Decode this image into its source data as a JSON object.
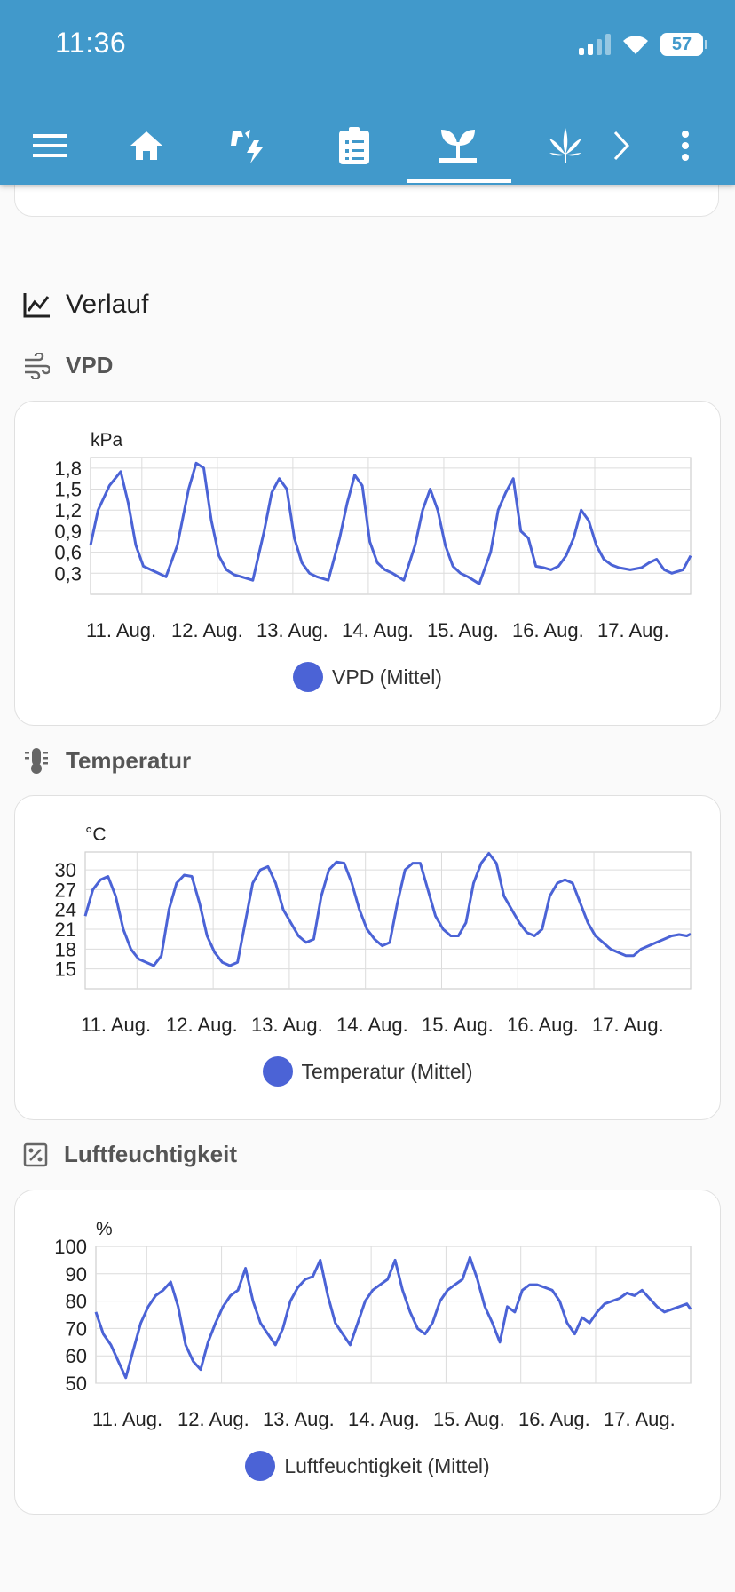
{
  "status": {
    "time": "11:36",
    "battery": "57"
  },
  "nav": {
    "icons": [
      "menu-icon",
      "home-icon",
      "weather-lightning-icon",
      "clipboard-list-icon",
      "sprout-icon",
      "cannabis-icon",
      "chevron-right-icon",
      "more-vert-icon"
    ],
    "active": "sprout-icon",
    "color": "#4199cb"
  },
  "section": {
    "title": "Verlauf"
  },
  "charts": [
    {
      "title": "VPD",
      "icon": "wind-icon",
      "legend": "VPD (Mittel)",
      "chart_data": {
        "type": "line",
        "unit": "kPa",
        "color": "#4b63d6",
        "x_labels": [
          "11. Aug.",
          "12. Aug.",
          "13. Aug.",
          "14. Aug.",
          "15. Aug.",
          "16. Aug.",
          "17. Aug."
        ],
        "y_ticks": [
          "1,8",
          "1,5",
          "1,2",
          "0,9",
          "0,6",
          "0,3"
        ],
        "ylim": [
          0,
          1.95
        ],
        "x": [
          10.0,
          10.1,
          10.25,
          10.4,
          10.5,
          10.6,
          10.7,
          10.8,
          10.9,
          11.0,
          11.15,
          11.3,
          11.4,
          11.5,
          11.6,
          11.7,
          11.8,
          11.9,
          12.0,
          12.15,
          12.3,
          12.4,
          12.5,
          12.6,
          12.7,
          12.8,
          12.9,
          13.0,
          13.15,
          13.3,
          13.4,
          13.5,
          13.6,
          13.7,
          13.8,
          13.9,
          14.0,
          14.15,
          14.3,
          14.4,
          14.5,
          14.6,
          14.7,
          14.8,
          14.9,
          15.0,
          15.15,
          15.3,
          15.4,
          15.5,
          15.6,
          15.7,
          15.8,
          15.9,
          16.0,
          16.1,
          16.2,
          16.3,
          16.4,
          16.5,
          16.6,
          16.7,
          16.8,
          16.9,
          17.0,
          17.15,
          17.3,
          17.4,
          17.5,
          17.6,
          17.7,
          17.85,
          17.95
        ],
        "values": [
          0.7,
          1.2,
          1.55,
          1.75,
          1.3,
          0.7,
          0.4,
          0.35,
          0.3,
          0.25,
          0.7,
          1.5,
          1.87,
          1.8,
          1.05,
          0.55,
          0.35,
          0.28,
          0.25,
          0.2,
          0.9,
          1.45,
          1.65,
          1.5,
          0.8,
          0.45,
          0.3,
          0.25,
          0.2,
          0.8,
          1.3,
          1.7,
          1.55,
          0.75,
          0.45,
          0.35,
          0.3,
          0.2,
          0.7,
          1.2,
          1.5,
          1.2,
          0.7,
          0.4,
          0.3,
          0.25,
          0.15,
          0.6,
          1.2,
          1.45,
          1.65,
          0.9,
          0.8,
          0.4,
          0.38,
          0.35,
          0.4,
          0.55,
          0.8,
          1.2,
          1.05,
          0.7,
          0.5,
          0.42,
          0.38,
          0.35,
          0.38,
          0.45,
          0.5,
          0.35,
          0.3,
          0.35,
          0.55
        ]
      }
    },
    {
      "title": "Temperatur",
      "icon": "thermometer-icon",
      "legend": "Temperatur (Mittel)",
      "chart_data": {
        "type": "line",
        "unit": "°C",
        "color": "#4b63d6",
        "x_labels": [
          "11. Aug.",
          "12. Aug.",
          "13. Aug.",
          "14. Aug.",
          "15. Aug.",
          "16. Aug.",
          "17. Aug."
        ],
        "y_ticks": [
          "30",
          "27",
          "24",
          "21",
          "18",
          "15"
        ],
        "ylim": [
          12,
          32.7
        ],
        "x": [
          10.0,
          10.1,
          10.2,
          10.3,
          10.4,
          10.5,
          10.6,
          10.7,
          10.8,
          10.9,
          11.0,
          11.1,
          11.2,
          11.3,
          11.4,
          11.5,
          11.6,
          11.7,
          11.8,
          11.9,
          12.0,
          12.1,
          12.2,
          12.3,
          12.4,
          12.5,
          12.6,
          12.7,
          12.8,
          12.9,
          13.0,
          13.1,
          13.2,
          13.3,
          13.4,
          13.5,
          13.6,
          13.7,
          13.8,
          13.9,
          14.0,
          14.1,
          14.2,
          14.3,
          14.4,
          14.5,
          14.6,
          14.7,
          14.8,
          14.9,
          15.0,
          15.1,
          15.2,
          15.3,
          15.4,
          15.5,
          15.6,
          15.7,
          15.8,
          15.9,
          16.0,
          16.1,
          16.2,
          16.3,
          16.4,
          16.5,
          16.6,
          16.7,
          16.8,
          16.9,
          17.0,
          17.1,
          17.2,
          17.3,
          17.4,
          17.5,
          17.6,
          17.7,
          17.8,
          17.9,
          17.95
        ],
        "values": [
          23,
          27,
          28.5,
          29,
          26,
          21,
          18,
          16.5,
          16,
          15.5,
          17,
          24,
          28,
          29.2,
          29,
          25,
          20,
          17.5,
          16,
          15.5,
          16,
          22,
          28,
          30,
          30.5,
          28,
          24,
          22,
          20,
          19,
          19.5,
          26,
          30,
          31.2,
          31,
          28,
          24,
          21,
          19.5,
          18.5,
          19,
          25,
          30,
          31,
          31,
          27,
          23,
          21,
          20,
          20,
          22,
          28,
          31,
          32.5,
          31,
          26,
          24,
          22,
          20.5,
          20,
          21,
          26,
          28,
          28.5,
          28,
          25,
          22,
          20,
          19,
          18,
          17.5,
          17,
          17,
          18,
          18.5,
          19,
          19.5,
          20,
          20.2,
          20,
          20.3
        ]
      }
    },
    {
      "title": "Luftfeuchtigkeit",
      "icon": "percent-box-icon",
      "legend": "Luftfeuchtigkeit (Mittel)",
      "chart_data": {
        "type": "line",
        "unit": "%",
        "color": "#4b63d6",
        "x_labels": [
          "11. Aug.",
          "12. Aug.",
          "13. Aug.",
          "14. Aug.",
          "15. Aug.",
          "16. Aug.",
          "17. Aug."
        ],
        "y_ticks": [
          "100",
          "90",
          "80",
          "70",
          "60",
          "50"
        ],
        "ylim": [
          50,
          100
        ],
        "x": [
          10.0,
          10.1,
          10.2,
          10.3,
          10.4,
          10.5,
          10.6,
          10.7,
          10.8,
          10.9,
          11.0,
          11.1,
          11.2,
          11.3,
          11.4,
          11.5,
          11.6,
          11.7,
          11.8,
          11.9,
          12.0,
          12.1,
          12.2,
          12.3,
          12.4,
          12.5,
          12.6,
          12.7,
          12.8,
          12.9,
          13.0,
          13.1,
          13.2,
          13.3,
          13.4,
          13.5,
          13.6,
          13.7,
          13.8,
          13.9,
          14.0,
          14.1,
          14.2,
          14.3,
          14.4,
          14.5,
          14.6,
          14.7,
          14.8,
          14.9,
          15.0,
          15.1,
          15.2,
          15.3,
          15.4,
          15.5,
          15.6,
          15.7,
          15.8,
          15.9,
          16.0,
          16.1,
          16.2,
          16.3,
          16.4,
          16.5,
          16.6,
          16.7,
          16.8,
          16.9,
          17.0,
          17.1,
          17.2,
          17.3,
          17.4,
          17.5,
          17.6,
          17.7,
          17.8,
          17.9,
          17.95
        ],
        "values": [
          76,
          68,
          64,
          58,
          52,
          62,
          72,
          78,
          82,
          84,
          87,
          78,
          64,
          58,
          55,
          65,
          72,
          78,
          82,
          84,
          92,
          80,
          72,
          68,
          64,
          70,
          80,
          85,
          88,
          89,
          95,
          82,
          72,
          68,
          64,
          72,
          80,
          84,
          86,
          88,
          95,
          84,
          76,
          70,
          68,
          72,
          80,
          84,
          86,
          88,
          96,
          88,
          78,
          72,
          65,
          78,
          76,
          84,
          86,
          86,
          85,
          84,
          80,
          72,
          68,
          74,
          72,
          76,
          79,
          80,
          81,
          83,
          82,
          84,
          81,
          78,
          76,
          77,
          78,
          79,
          77
        ]
      }
    }
  ]
}
